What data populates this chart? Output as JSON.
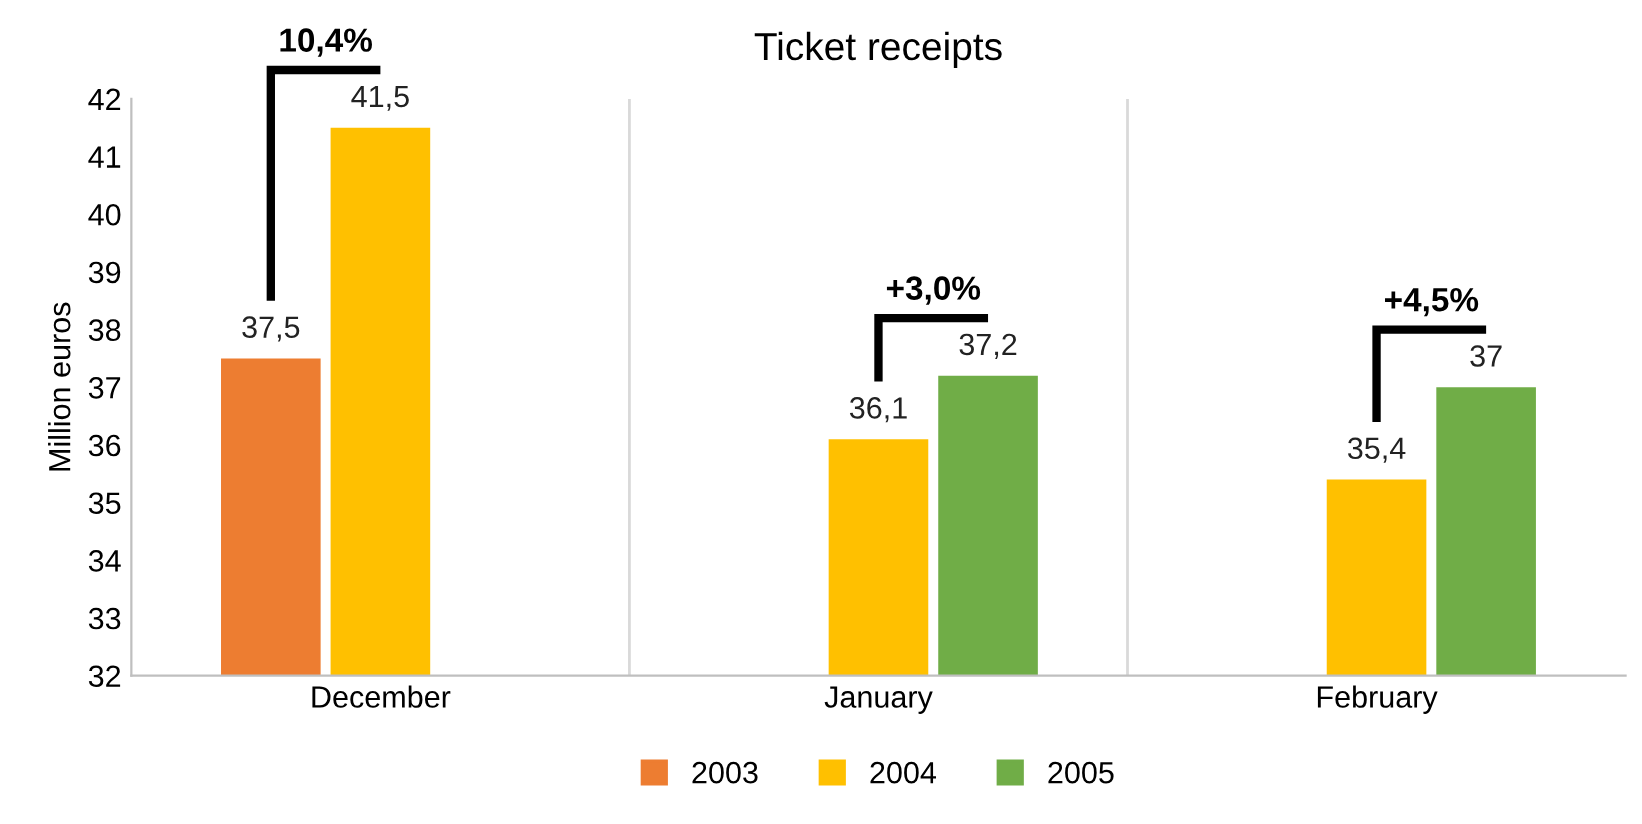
{
  "chart_data": {
    "type": "bar",
    "title": "Ticket receipts",
    "ylabel": "Million euros",
    "categories": [
      "December",
      "January",
      "February"
    ],
    "series": [
      {
        "name": "2003",
        "color": "#ed7d31",
        "values": [
          37.5,
          null,
          null
        ],
        "value_labels": [
          "37,5",
          null,
          null
        ]
      },
      {
        "name": "2004",
        "color": "#ffc000",
        "values": [
          41.5,
          36.1,
          35.4
        ],
        "value_labels": [
          "41,5",
          "36,1",
          "35,4"
        ]
      },
      {
        "name": "2005",
        "color": "#70ad47",
        "values": [
          null,
          37.2,
          37
        ],
        "value_labels": [
          null,
          "37,2",
          "37"
        ]
      }
    ],
    "ylim": [
      32,
      42
    ],
    "yticks": [
      32,
      33,
      34,
      35,
      36,
      37,
      38,
      39,
      40,
      41,
      42
    ],
    "annotations": [
      "10,4%",
      "+3,0%",
      "+4,5%"
    ],
    "grid": "x",
    "legend": "bottom"
  }
}
